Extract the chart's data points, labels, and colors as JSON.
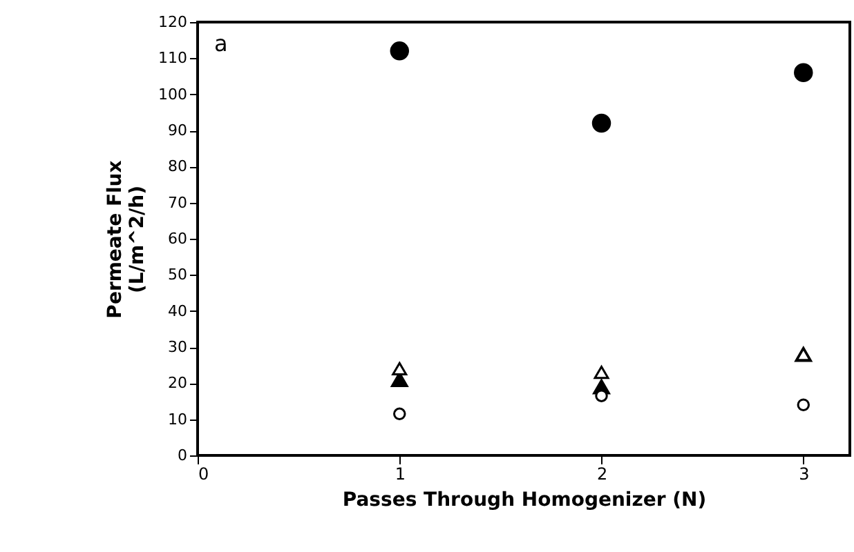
{
  "chart_data": {
    "type": "scatter",
    "xlabel": "Passes  Through  Homogenizer  (N)",
    "ylabel": "Permeate Flux\n(L/m^2/h)",
    "annotations": [
      "a"
    ],
    "x": [
      1,
      2,
      3
    ],
    "series": [
      {
        "color": "#000000",
        "marker": "circle",
        "values": [
          112,
          92,
          106
        ]
      },
      {
        "color": "#000000",
        "marker": "triangle",
        "values": [
          21,
          19,
          28
        ]
      },
      {
        "color": "#ffffff",
        "marker": "triangle",
        "values": [
          24,
          23,
          28
        ]
      },
      {
        "color": "#ffffff",
        "marker": "circle",
        "values": [
          11.5,
          16.5,
          14
        ]
      }
    ],
    "xlim": [
      0,
      3.23
    ],
    "xticks": [
      0,
      1,
      2,
      3
    ],
    "ylim": [
      0,
      120
    ],
    "yticks": [
      0,
      10,
      20,
      30,
      40,
      50,
      60,
      70,
      80,
      90,
      100,
      110,
      120
    ]
  }
}
